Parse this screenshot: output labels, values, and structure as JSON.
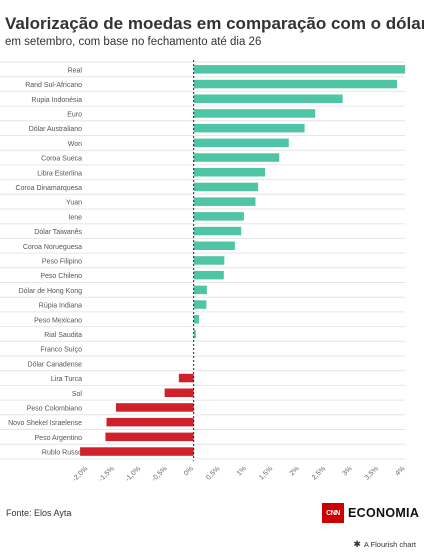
{
  "title": "Valorização de moedas em comparação com o dólar",
  "subtitle": "em setembro, com base no fechamento até dia 26",
  "source": "Fonte: Elos Ayta",
  "logo": {
    "cnn": "CNN",
    "name": "ECONOMIA"
  },
  "flourish_credit": "A Flourish chart",
  "colors": {
    "positive": "#4fc5a6",
    "negative": "#d0202a",
    "zero_line": "#222222",
    "grid": "#e6e6e6"
  },
  "chart_data": {
    "type": "bar",
    "orientation": "horizontal",
    "categories": [
      "Real",
      "Rand Sul-Africano",
      "Rupia Indonésia",
      "Euro",
      "Dólar Australiano",
      "Won",
      "Coroa Sueca",
      "Libra Esterlina",
      "Coroa Dinamarquesa",
      "Yuan",
      "Iene",
      "Dólar Taiwanês",
      "Coroa Norueguesa",
      "Peso Filipino",
      "Peso Chileno",
      "Dólar de Hong Kong",
      "Rúpia Indiana",
      "Peso Mexicano",
      "Rial Saudita",
      "Franco Suíço",
      "Dólar Canadense",
      "Lira Turca",
      "Sol",
      "Peso Colombiano",
      "Novo Shekel Israelense",
      "Peso Argentino",
      "Rublo Russo"
    ],
    "values": [
      4.0,
      3.85,
      2.82,
      2.3,
      2.1,
      1.8,
      1.62,
      1.35,
      1.22,
      1.17,
      0.95,
      0.9,
      0.78,
      0.58,
      0.57,
      0.25,
      0.24,
      0.1,
      0.04,
      0.0,
      0.0,
      -0.28,
      -0.55,
      -1.47,
      -1.65,
      -1.67,
      -2.15
    ],
    "xticks": [
      -2.0,
      -1.5,
      -1.0,
      -0.5,
      0,
      0.5,
      1,
      1.5,
      2,
      2.5,
      3,
      3.5,
      4
    ],
    "xtick_labels": [
      "-2,0%",
      "-1,5%",
      "-1,0%",
      "-0,5%",
      "0%",
      "0,5%",
      "1%",
      "1,5%",
      "2%",
      "2,5%",
      "3%",
      "3,5%",
      "4%"
    ],
    "xlim": [
      -2.0,
      4.0
    ],
    "grid": true
  }
}
